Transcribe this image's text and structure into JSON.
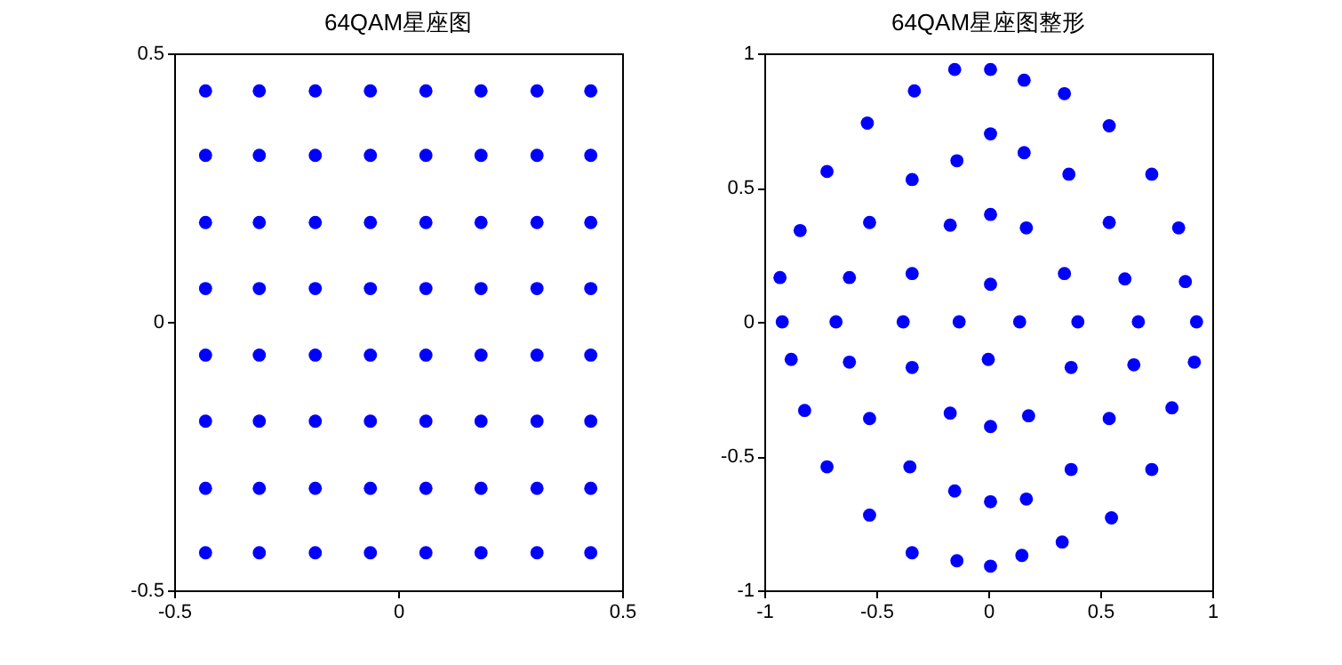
{
  "chart_data": [
    {
      "type": "scatter",
      "title": "64QAM星座图",
      "marker": "circle",
      "grid": false,
      "xlim": [
        -0.5,
        0.5
      ],
      "ylim": [
        -0.5,
        0.5
      ],
      "xticks": [
        -0.5,
        0,
        0.5
      ],
      "yticks": [
        -0.5,
        0,
        0.5
      ],
      "series": [
        {
          "color": "#0000ff",
          "x": [
            -0.43,
            -0.31,
            -0.185,
            -0.062,
            0.062,
            0.185,
            0.31,
            0.43,
            -0.43,
            -0.31,
            -0.185,
            -0.062,
            0.062,
            0.185,
            0.31,
            0.43,
            -0.43,
            -0.31,
            -0.185,
            -0.062,
            0.062,
            0.185,
            0.31,
            0.43,
            -0.43,
            -0.31,
            -0.185,
            -0.062,
            0.062,
            0.185,
            0.31,
            0.43,
            -0.43,
            -0.31,
            -0.185,
            -0.062,
            0.062,
            0.185,
            0.31,
            0.43,
            -0.43,
            -0.31,
            -0.185,
            -0.062,
            0.062,
            0.185,
            0.31,
            0.43,
            -0.43,
            -0.31,
            -0.185,
            -0.062,
            0.062,
            0.185,
            0.31,
            0.43,
            -0.43,
            -0.31,
            -0.185,
            -0.062,
            0.062,
            0.185,
            0.31,
            0.43
          ],
          "values": [
            0.43,
            0.43,
            0.43,
            0.43,
            0.43,
            0.43,
            0.43,
            0.43,
            0.31,
            0.31,
            0.31,
            0.31,
            0.31,
            0.31,
            0.31,
            0.31,
            0.185,
            0.185,
            0.185,
            0.185,
            0.185,
            0.185,
            0.185,
            0.185,
            0.062,
            0.062,
            0.062,
            0.062,
            0.062,
            0.062,
            0.062,
            0.062,
            -0.062,
            -0.062,
            -0.062,
            -0.062,
            -0.062,
            -0.062,
            -0.062,
            -0.062,
            -0.185,
            -0.185,
            -0.185,
            -0.185,
            -0.185,
            -0.185,
            -0.185,
            -0.185,
            -0.31,
            -0.31,
            -0.31,
            -0.31,
            -0.31,
            -0.31,
            -0.31,
            -0.31,
            -0.43,
            -0.43,
            -0.43,
            -0.43,
            -0.43,
            -0.43,
            -0.43,
            -0.43
          ]
        }
      ]
    },
    {
      "type": "scatter",
      "title": "64QAM星座图整形",
      "marker": "circle",
      "grid": false,
      "xlim": [
        -1,
        1
      ],
      "ylim": [
        -1,
        1
      ],
      "xticks": [
        -1,
        -0.5,
        0,
        0.5,
        1
      ],
      "yticks": [
        -1,
        -0.5,
        0,
        0.5,
        1
      ],
      "series": [
        {
          "color": "#0000ff",
          "x": [
            -0.92,
            -0.68,
            -0.38,
            -0.13,
            0.14,
            0.4,
            0.67,
            0.93,
            -0.93,
            -0.62,
            -0.34,
            0.01,
            0.34,
            0.61,
            0.88,
            -0.84,
            -0.53,
            -0.17,
            0.01,
            0.17,
            0.54,
            0.85,
            -0.72,
            -0.34,
            -0.14,
            0.16,
            0.36,
            0.73,
            -0.54,
            0.01,
            0.54,
            -0.33,
            0.34,
            -0.15,
            0.01,
            0.16,
            -0.88,
            -0.62,
            -0.34,
            0.0,
            0.37,
            0.65,
            0.92,
            -0.82,
            -0.53,
            -0.17,
            0.01,
            0.18,
            0.54,
            0.82,
            -0.72,
            -0.35,
            0.37,
            0.73,
            -0.15,
            0.01,
            0.17,
            -0.53,
            0.55,
            -0.34,
            -0.14,
            0.01,
            0.15,
            0.33
          ],
          "values": [
            0,
            0,
            0,
            0,
            0,
            0,
            0,
            0,
            0.165,
            0.165,
            0.18,
            0.14,
            0.18,
            0.16,
            0.15,
            0.34,
            0.37,
            0.36,
            0.4,
            0.35,
            0.37,
            0.35,
            0.56,
            0.53,
            0.6,
            0.63,
            0.55,
            0.55,
            0.74,
            0.7,
            0.73,
            0.86,
            0.85,
            0.94,
            0.94,
            0.9,
            -0.14,
            -0.15,
            -0.17,
            -0.14,
            -0.17,
            -0.16,
            -0.15,
            -0.33,
            -0.36,
            -0.34,
            -0.39,
            -0.35,
            -0.36,
            -0.32,
            -0.54,
            -0.54,
            -0.55,
            -0.55,
            -0.63,
            -0.67,
            -0.66,
            -0.72,
            -0.73,
            -0.86,
            -0.89,
            -0.91,
            -0.87,
            -0.82
          ]
        }
      ]
    }
  ]
}
